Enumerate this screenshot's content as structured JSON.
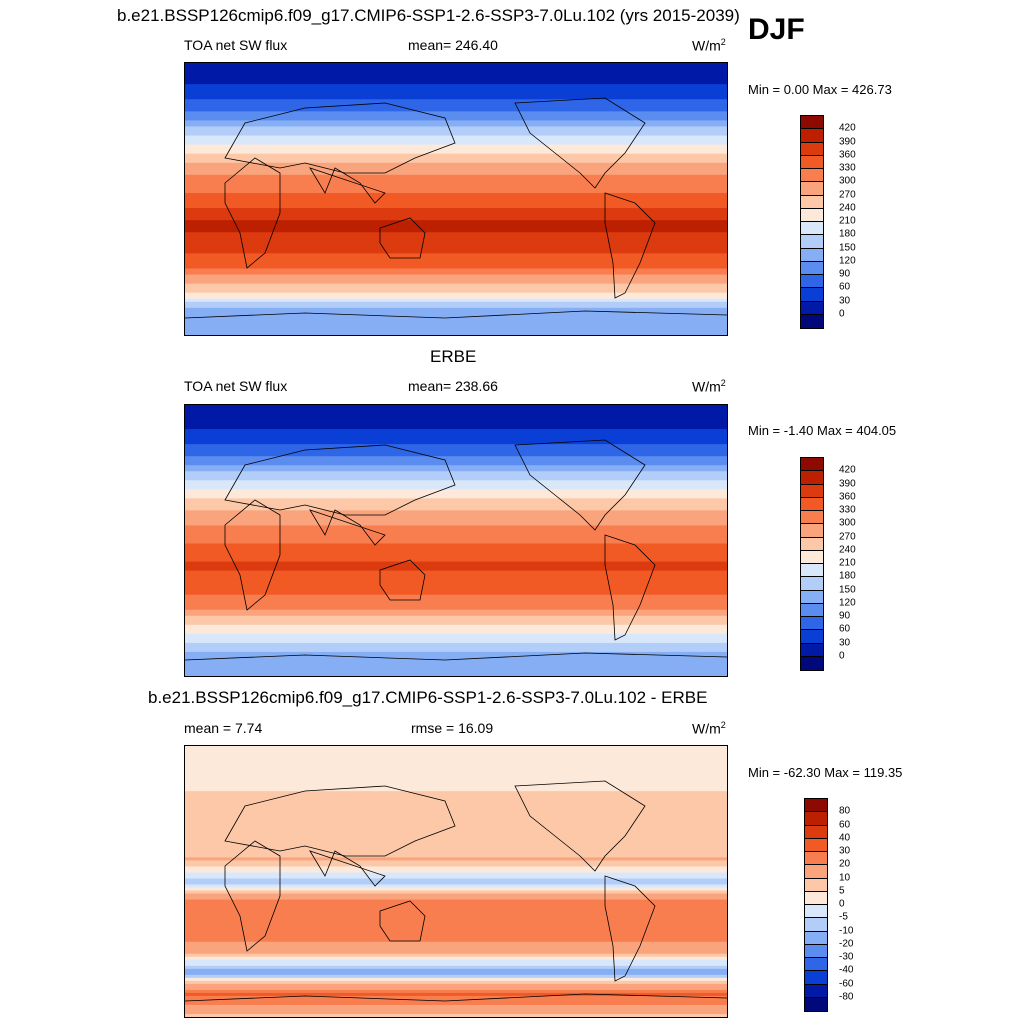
{
  "season": "DJF",
  "panels": [
    {
      "title": "b.e21.BSSP126cmip6.f09_g17.CMIP6-SSP1-2.6-SSP3-7.0Lu.102 (yrs 2015-2039)",
      "left_label": "TOA net SW flux",
      "center_label": "mean= 246.40",
      "units": "W/m",
      "units_sup": "2",
      "minmax": "Min =   0.00 Max = 426.73",
      "colorbar": {
        "labels": [
          "420",
          "390",
          "360",
          "330",
          "300",
          "270",
          "240",
          "210",
          "180",
          "150",
          "120",
          "90",
          "60",
          "30",
          "0"
        ],
        "colors": [
          "#8c0a00",
          "#bd2000",
          "#dc3a0f",
          "#f25a25",
          "#f87e50",
          "#f9a47c",
          "#fcc8a8",
          "#fde9da",
          "#d9e7fb",
          "#b3cdf9",
          "#86aef5",
          "#5b8cf0",
          "#2f66e8",
          "#0a3fd6",
          "#0019a6",
          "#00087a"
        ]
      },
      "chart_data": {
        "type": "heatmap",
        "title": "b.e21.BSSP126cmip6.f09_g17.CMIP6-SSP1-2.6-SSP3-7.0Lu.102 (yrs 2015-2039)",
        "variable": "TOA net SW flux",
        "units": "W/m2",
        "mean": 246.4,
        "min": 0.0,
        "max": 426.73,
        "levels": [
          0,
          30,
          60,
          90,
          120,
          150,
          180,
          210,
          240,
          270,
          300,
          330,
          360,
          390,
          420
        ],
        "zonal_bands_north_to_south": [
          {
            "lat": 90,
            "value": 10
          },
          {
            "lat": 75,
            "value": 30
          },
          {
            "lat": 60,
            "value": 80
          },
          {
            "lat": 45,
            "value": 165
          },
          {
            "lat": 30,
            "value": 245
          },
          {
            "lat": 15,
            "value": 300
          },
          {
            "lat": 0,
            "value": 340
          },
          {
            "lat": -15,
            "value": 395
          },
          {
            "lat": -30,
            "value": 385
          },
          {
            "lat": -45,
            "value": 330
          },
          {
            "lat": -60,
            "value": 250
          },
          {
            "lat": -75,
            "value": 130
          },
          {
            "lat": -90,
            "value": 120
          }
        ]
      }
    },
    {
      "title": "ERBE",
      "left_label": "TOA net SW flux",
      "center_label": "mean= 238.66",
      "units": "W/m",
      "units_sup": "2",
      "minmax": "Min =  -1.40 Max = 404.05",
      "colorbar": {
        "labels": [
          "420",
          "390",
          "360",
          "330",
          "300",
          "270",
          "240",
          "210",
          "180",
          "150",
          "120",
          "90",
          "60",
          "30",
          "0"
        ],
        "colors": [
          "#8c0a00",
          "#bd2000",
          "#dc3a0f",
          "#f25a25",
          "#f87e50",
          "#f9a47c",
          "#fcc8a8",
          "#fde9da",
          "#d9e7fb",
          "#b3cdf9",
          "#86aef5",
          "#5b8cf0",
          "#2f66e8",
          "#0a3fd6",
          "#0019a6",
          "#00087a"
        ]
      },
      "chart_data": {
        "type": "heatmap",
        "title": "ERBE",
        "variable": "TOA net SW flux",
        "units": "W/m2",
        "mean": 238.66,
        "min": -1.4,
        "max": 404.05,
        "levels": [
          0,
          30,
          60,
          90,
          120,
          150,
          180,
          210,
          240,
          270,
          300,
          330,
          360,
          390,
          420
        ],
        "zonal_bands_north_to_south": [
          {
            "lat": 90,
            "value": 5
          },
          {
            "lat": 75,
            "value": 25
          },
          {
            "lat": 60,
            "value": 70
          },
          {
            "lat": 45,
            "value": 150
          },
          {
            "lat": 30,
            "value": 235
          },
          {
            "lat": 15,
            "value": 290
          },
          {
            "lat": 0,
            "value": 325
          },
          {
            "lat": -15,
            "value": 365
          },
          {
            "lat": -30,
            "value": 350
          },
          {
            "lat": -45,
            "value": 300
          },
          {
            "lat": -60,
            "value": 220
          },
          {
            "lat": -75,
            "value": 140
          },
          {
            "lat": -90,
            "value": 125
          }
        ]
      }
    },
    {
      "title": "b.e21.BSSP126cmip6.f09_g17.CMIP6-SSP1-2.6-SSP3-7.0Lu.102 - ERBE",
      "left_label": "mean =   7.74",
      "center_label": "rmse =  16.09",
      "units": "W/m",
      "units_sup": "2",
      "minmax": "Min = -62.30 Max = 119.35",
      "colorbar": {
        "labels": [
          "80",
          "60",
          "40",
          "30",
          "20",
          "10",
          "5",
          "0",
          "-5",
          "-10",
          "-20",
          "-30",
          "-40",
          "-60",
          "-80"
        ],
        "colors": [
          "#8c0a00",
          "#bd2000",
          "#dc3a0f",
          "#f25a25",
          "#f87e50",
          "#f9a47c",
          "#fcc8a8",
          "#fde9da",
          "#d9e7fb",
          "#b3cdf9",
          "#86aef5",
          "#5b8cf0",
          "#2f66e8",
          "#0a3fd6",
          "#0019a6",
          "#00087a"
        ]
      },
      "chart_data": {
        "type": "heatmap",
        "title": "b.e21.BSSP126cmip6.f09_g17.CMIP6-SSP1-2.6-SSP3-7.0Lu.102 - ERBE",
        "units": "W/m2",
        "mean": 7.74,
        "rmse": 16.09,
        "min": -62.3,
        "max": 119.35,
        "levels": [
          -80,
          -60,
          -40,
          -30,
          -20,
          -10,
          -5,
          0,
          5,
          10,
          20,
          30,
          40,
          60,
          80
        ],
        "zonal_bands_north_to_south": [
          {
            "lat": 90,
            "value": 2
          },
          {
            "lat": 75,
            "value": 3
          },
          {
            "lat": 60,
            "value": 5
          },
          {
            "lat": 45,
            "value": 5
          },
          {
            "lat": 30,
            "value": 8
          },
          {
            "lat": 15,
            "value": 10
          },
          {
            "lat": 0,
            "value": -8
          },
          {
            "lat": -15,
            "value": 25
          },
          {
            "lat": -30,
            "value": 30
          },
          {
            "lat": -45,
            "value": 15
          },
          {
            "lat": -60,
            "value": -15
          },
          {
            "lat": -75,
            "value": 30
          },
          {
            "lat": -90,
            "value": 5
          }
        ]
      }
    }
  ]
}
